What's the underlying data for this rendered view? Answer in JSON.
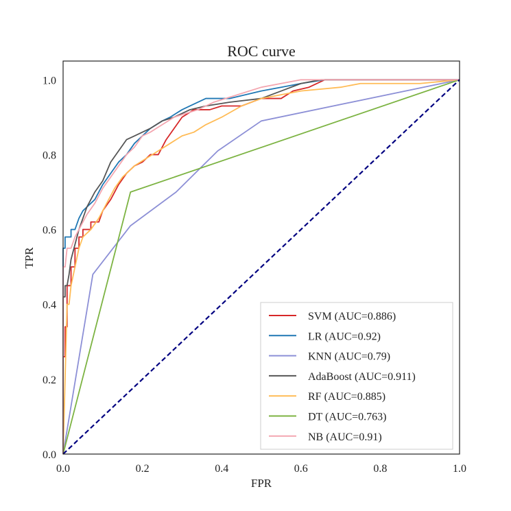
{
  "chart_data": {
    "type": "line",
    "title": "ROC curve",
    "xlabel": "FPR",
    "ylabel": "TPR",
    "xlim": [
      0.0,
      1.0
    ],
    "ylim": [
      0.0,
      1.05
    ],
    "xticks": [
      "0.0",
      "0.2",
      "0.4",
      "0.6",
      "0.8",
      "1.0"
    ],
    "yticks": [
      "0.0",
      "0.2",
      "0.4",
      "0.6",
      "0.8",
      "1.0"
    ],
    "grid": false,
    "legend_position": "bottom-right",
    "series": [
      {
        "name": "SVM (AUC=0.886)",
        "color": "#d62728",
        "points": [
          [
            0,
            0
          ],
          [
            0,
            0.26
          ],
          [
            0.005,
            0.26
          ],
          [
            0.005,
            0.34
          ],
          [
            0.01,
            0.34
          ],
          [
            0.01,
            0.45
          ],
          [
            0.02,
            0.45
          ],
          [
            0.02,
            0.5
          ],
          [
            0.03,
            0.5
          ],
          [
            0.03,
            0.55
          ],
          [
            0.04,
            0.55
          ],
          [
            0.04,
            0.58
          ],
          [
            0.05,
            0.58
          ],
          [
            0.05,
            0.6
          ],
          [
            0.07,
            0.6
          ],
          [
            0.07,
            0.62
          ],
          [
            0.09,
            0.62
          ],
          [
            0.1,
            0.65
          ],
          [
            0.12,
            0.68
          ],
          [
            0.14,
            0.72
          ],
          [
            0.16,
            0.75
          ],
          [
            0.18,
            0.77
          ],
          [
            0.2,
            0.78
          ],
          [
            0.22,
            0.8
          ],
          [
            0.24,
            0.8
          ],
          [
            0.26,
            0.84
          ],
          [
            0.28,
            0.87
          ],
          [
            0.3,
            0.9
          ],
          [
            0.33,
            0.92
          ],
          [
            0.37,
            0.92
          ],
          [
            0.4,
            0.93
          ],
          [
            0.45,
            0.93
          ],
          [
            0.5,
            0.95
          ],
          [
            0.55,
            0.95
          ],
          [
            0.58,
            0.97
          ],
          [
            0.62,
            0.98
          ],
          [
            0.66,
            1.0
          ],
          [
            1.0,
            1.0
          ]
        ]
      },
      {
        "name": "LR (AUC=0.92)",
        "color": "#1f77b4",
        "points": [
          [
            0,
            0
          ],
          [
            0,
            0.55
          ],
          [
            0.005,
            0.55
          ],
          [
            0.005,
            0.58
          ],
          [
            0.02,
            0.58
          ],
          [
            0.02,
            0.6
          ],
          [
            0.03,
            0.6
          ],
          [
            0.04,
            0.63
          ],
          [
            0.05,
            0.65
          ],
          [
            0.06,
            0.66
          ],
          [
            0.08,
            0.68
          ],
          [
            0.1,
            0.72
          ],
          [
            0.12,
            0.75
          ],
          [
            0.14,
            0.78
          ],
          [
            0.16,
            0.8
          ],
          [
            0.18,
            0.83
          ],
          [
            0.2,
            0.85
          ],
          [
            0.22,
            0.87
          ],
          [
            0.25,
            0.89
          ],
          [
            0.27,
            0.9
          ],
          [
            0.3,
            0.92
          ],
          [
            0.32,
            0.93
          ],
          [
            0.36,
            0.95
          ],
          [
            0.42,
            0.95
          ],
          [
            0.5,
            0.97
          ],
          [
            0.55,
            0.98
          ],
          [
            0.6,
            0.99
          ],
          [
            0.66,
            1.0
          ],
          [
            1.0,
            1.0
          ]
        ]
      },
      {
        "name": "KNN (AUC=0.79)",
        "color": "#8c8fd6",
        "points": [
          [
            0,
            0
          ],
          [
            0.075,
            0.48
          ],
          [
            0.17,
            0.61
          ],
          [
            0.285,
            0.7
          ],
          [
            0.39,
            0.81
          ],
          [
            0.5,
            0.89
          ],
          [
            1.0,
            1.0
          ]
        ]
      },
      {
        "name": "AdaBoost (AUC=0.911)",
        "color": "#555555",
        "points": [
          [
            0,
            0
          ],
          [
            0,
            0.42
          ],
          [
            0.005,
            0.42
          ],
          [
            0.005,
            0.45
          ],
          [
            0.01,
            0.45
          ],
          [
            0.015,
            0.48
          ],
          [
            0.02,
            0.52
          ],
          [
            0.03,
            0.56
          ],
          [
            0.04,
            0.6
          ],
          [
            0.05,
            0.63
          ],
          [
            0.06,
            0.66
          ],
          [
            0.08,
            0.7
          ],
          [
            0.1,
            0.73
          ],
          [
            0.12,
            0.78
          ],
          [
            0.14,
            0.81
          ],
          [
            0.16,
            0.84
          ],
          [
            0.18,
            0.85
          ],
          [
            0.2,
            0.86
          ],
          [
            0.22,
            0.87
          ],
          [
            0.25,
            0.89
          ],
          [
            0.28,
            0.9
          ],
          [
            0.32,
            0.92
          ],
          [
            0.36,
            0.93
          ],
          [
            0.42,
            0.94
          ],
          [
            0.5,
            0.95
          ],
          [
            0.55,
            0.97
          ],
          [
            0.6,
            0.99
          ],
          [
            0.65,
            1.0
          ],
          [
            1.0,
            1.0
          ]
        ]
      },
      {
        "name": "RF (AUC=0.885)",
        "color": "#ffbb55",
        "points": [
          [
            0,
            0
          ],
          [
            0.01,
            0.4
          ],
          [
            0.015,
            0.4
          ],
          [
            0.02,
            0.45
          ],
          [
            0.03,
            0.5
          ],
          [
            0.04,
            0.55
          ],
          [
            0.05,
            0.58
          ],
          [
            0.07,
            0.6
          ],
          [
            0.09,
            0.63
          ],
          [
            0.11,
            0.67
          ],
          [
            0.13,
            0.71
          ],
          [
            0.15,
            0.74
          ],
          [
            0.18,
            0.77
          ],
          [
            0.21,
            0.79
          ],
          [
            0.24,
            0.81
          ],
          [
            0.27,
            0.83
          ],
          [
            0.3,
            0.85
          ],
          [
            0.33,
            0.86
          ],
          [
            0.36,
            0.88
          ],
          [
            0.4,
            0.9
          ],
          [
            0.45,
            0.93
          ],
          [
            0.5,
            0.95
          ],
          [
            0.6,
            0.97
          ],
          [
            0.7,
            0.98
          ],
          [
            0.75,
            0.99
          ],
          [
            0.85,
            0.99
          ],
          [
            0.9,
            0.99
          ],
          [
            1.0,
            1.0
          ]
        ]
      },
      {
        "name": "DT (AUC=0.763)",
        "color": "#7cb342",
        "points": [
          [
            0,
            0
          ],
          [
            0.17,
            0.7
          ],
          [
            1.0,
            1.0
          ]
        ]
      },
      {
        "name": "NB (AUC=0.91)",
        "color": "#f4a6b0",
        "points": [
          [
            0,
            0
          ],
          [
            0,
            0.5
          ],
          [
            0.005,
            0.5
          ],
          [
            0.01,
            0.55
          ],
          [
            0.02,
            0.55
          ],
          [
            0.03,
            0.58
          ],
          [
            0.04,
            0.6
          ],
          [
            0.05,
            0.62
          ],
          [
            0.06,
            0.64
          ],
          [
            0.08,
            0.67
          ],
          [
            0.1,
            0.71
          ],
          [
            0.12,
            0.74
          ],
          [
            0.14,
            0.77
          ],
          [
            0.16,
            0.8
          ],
          [
            0.18,
            0.82
          ],
          [
            0.2,
            0.85
          ],
          [
            0.22,
            0.86
          ],
          [
            0.25,
            0.88
          ],
          [
            0.28,
            0.9
          ],
          [
            0.31,
            0.91
          ],
          [
            0.34,
            0.92
          ],
          [
            0.38,
            0.94
          ],
          [
            0.44,
            0.96
          ],
          [
            0.5,
            0.98
          ],
          [
            0.6,
            1.0
          ],
          [
            1.0,
            1.0
          ]
        ]
      }
    ],
    "reference_line": {
      "color": "#000080",
      "points": [
        [
          0,
          0
        ],
        [
          1,
          1
        ]
      ]
    }
  }
}
